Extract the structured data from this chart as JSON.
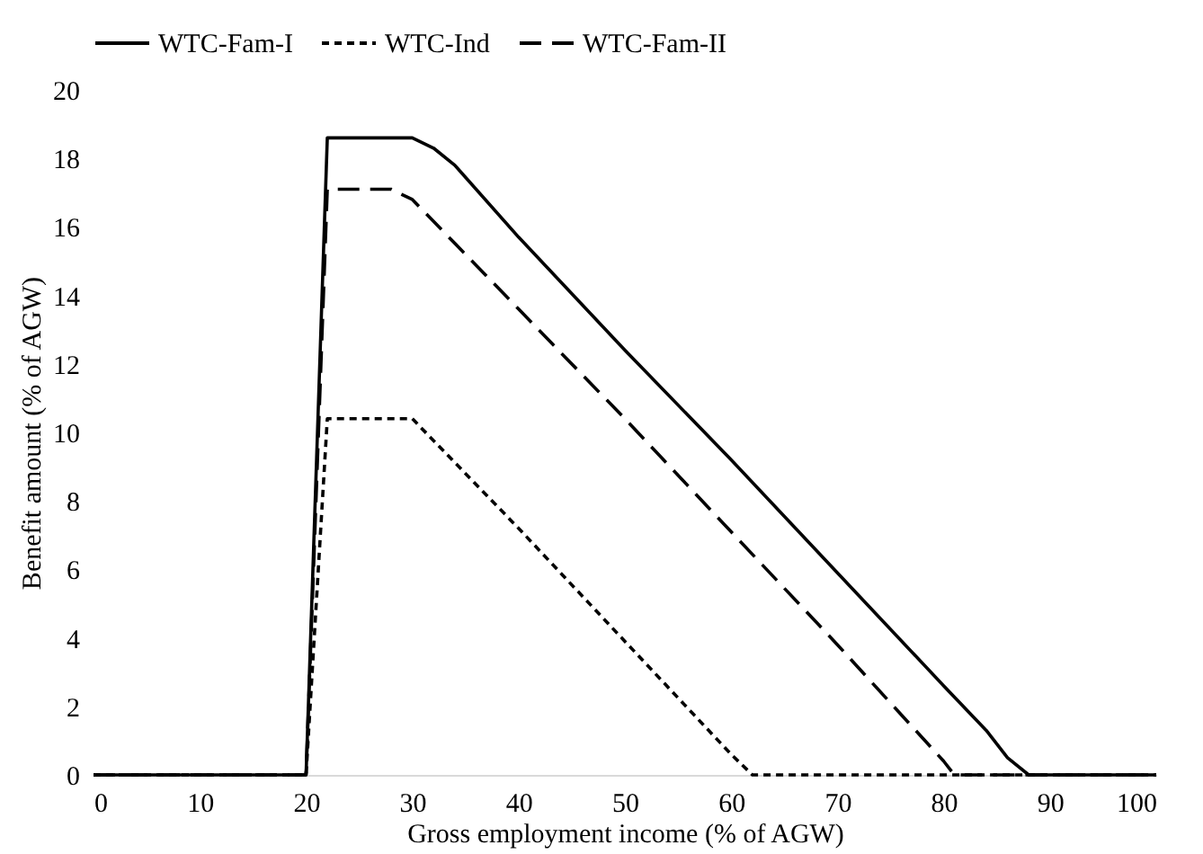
{
  "chart_data": {
    "type": "line",
    "xlabel": "Gross employment income (% of AGW)",
    "ylabel": "Benefit amount (% of AGW)",
    "xlim": [
      0,
      100
    ],
    "xticks": [
      0,
      10,
      20,
      30,
      40,
      50,
      60,
      70,
      80,
      90,
      100
    ],
    "ylim": [
      0,
      20
    ],
    "yticks": [
      0,
      2,
      4,
      6,
      8,
      10,
      12,
      14,
      16,
      18,
      20
    ],
    "grid": false,
    "legend": "top",
    "marker": "none",
    "series": [
      {
        "name": "WTC-Fam-I",
        "color": "#000000",
        "line_style": "solid",
        "x": [
          0,
          20,
          22,
          30,
          32,
          34,
          40,
          50,
          60,
          70,
          80,
          84,
          86,
          88,
          100
        ],
        "values": [
          0,
          0,
          18.6,
          18.6,
          18.3,
          17.8,
          15.7,
          12.4,
          9.2,
          5.9,
          2.6,
          1.3,
          0.5,
          0,
          0
        ]
      },
      {
        "name": "WTC-Ind",
        "color": "#000000",
        "line_style": "dotted",
        "x": [
          0,
          20,
          22,
          30,
          40,
          50,
          60,
          62,
          100
        ],
        "values": [
          0,
          0,
          10.4,
          10.4,
          7.2,
          3.9,
          0.6,
          0,
          0
        ]
      },
      {
        "name": "WTC-Fam-II",
        "color": "#000000",
        "line_style": "dashed",
        "x": [
          0,
          20,
          22,
          28,
          30,
          40,
          50,
          60,
          70,
          80,
          81,
          100
        ],
        "values": [
          0,
          0,
          17.1,
          17.1,
          16.8,
          13.6,
          10.4,
          7.1,
          3.8,
          0.4,
          0,
          0
        ]
      }
    ]
  }
}
